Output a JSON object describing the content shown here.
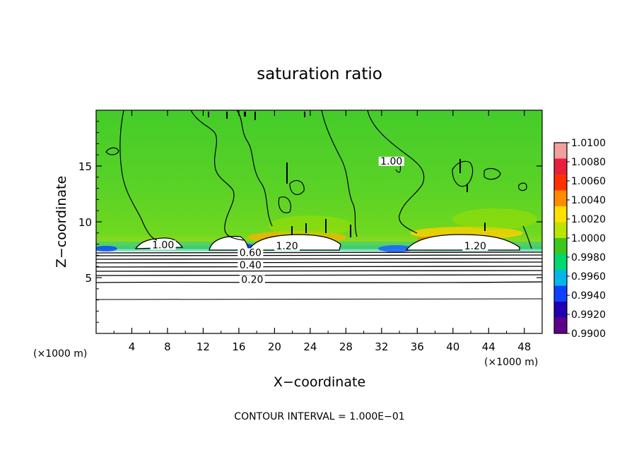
{
  "chart_data": {
    "type": "heatmap",
    "title": "saturation ratio",
    "xlabel": "X−coordinate",
    "ylabel": "Z−coordinate",
    "x_unit_left": "(×1000 m)",
    "x_unit_right": "(×1000 m)",
    "xlim": [
      0,
      50
    ],
    "ylim": [
      0,
      20
    ],
    "x_ticks": [
      4,
      8,
      12,
      16,
      20,
      24,
      28,
      32,
      36,
      40,
      44,
      48
    ],
    "y_ticks": [
      5,
      10,
      15
    ],
    "grid": false,
    "contour_interval_text": "CONTOUR INTERVAL = 1.000E−01",
    "contour_labels": [
      {
        "text": "1.00",
        "x": 7.5,
        "z": 7.7
      },
      {
        "text": "1.00",
        "x": 33.1,
        "z": 15.2
      },
      {
        "text": "1.20",
        "x": 21.4,
        "z": 7.6
      },
      {
        "text": "1.20",
        "x": 42.5,
        "z": 7.6
      },
      {
        "text": "0.60",
        "x": 17.3,
        "z": 7.0
      },
      {
        "text": "0.40",
        "x": 17.3,
        "z": 5.9
      },
      {
        "text": "0.20",
        "x": 17.5,
        "z": 4.6
      }
    ],
    "colorbar": {
      "ticks": [
        "1.0100",
        "1.0080",
        "1.0060",
        "1.0040",
        "1.0020",
        "1.0000",
        "0.9980",
        "0.9960",
        "0.9940",
        "0.9920",
        "0.9900"
      ],
      "colors": [
        "#f0a0a0",
        "#e8203c",
        "#ff3000",
        "#ff8c00",
        "#ffe000",
        "#bce400",
        "#3ec81e",
        "#00d870",
        "#00b8e8",
        "#1040ff",
        "#2000b0",
        "#600088"
      ]
    }
  }
}
